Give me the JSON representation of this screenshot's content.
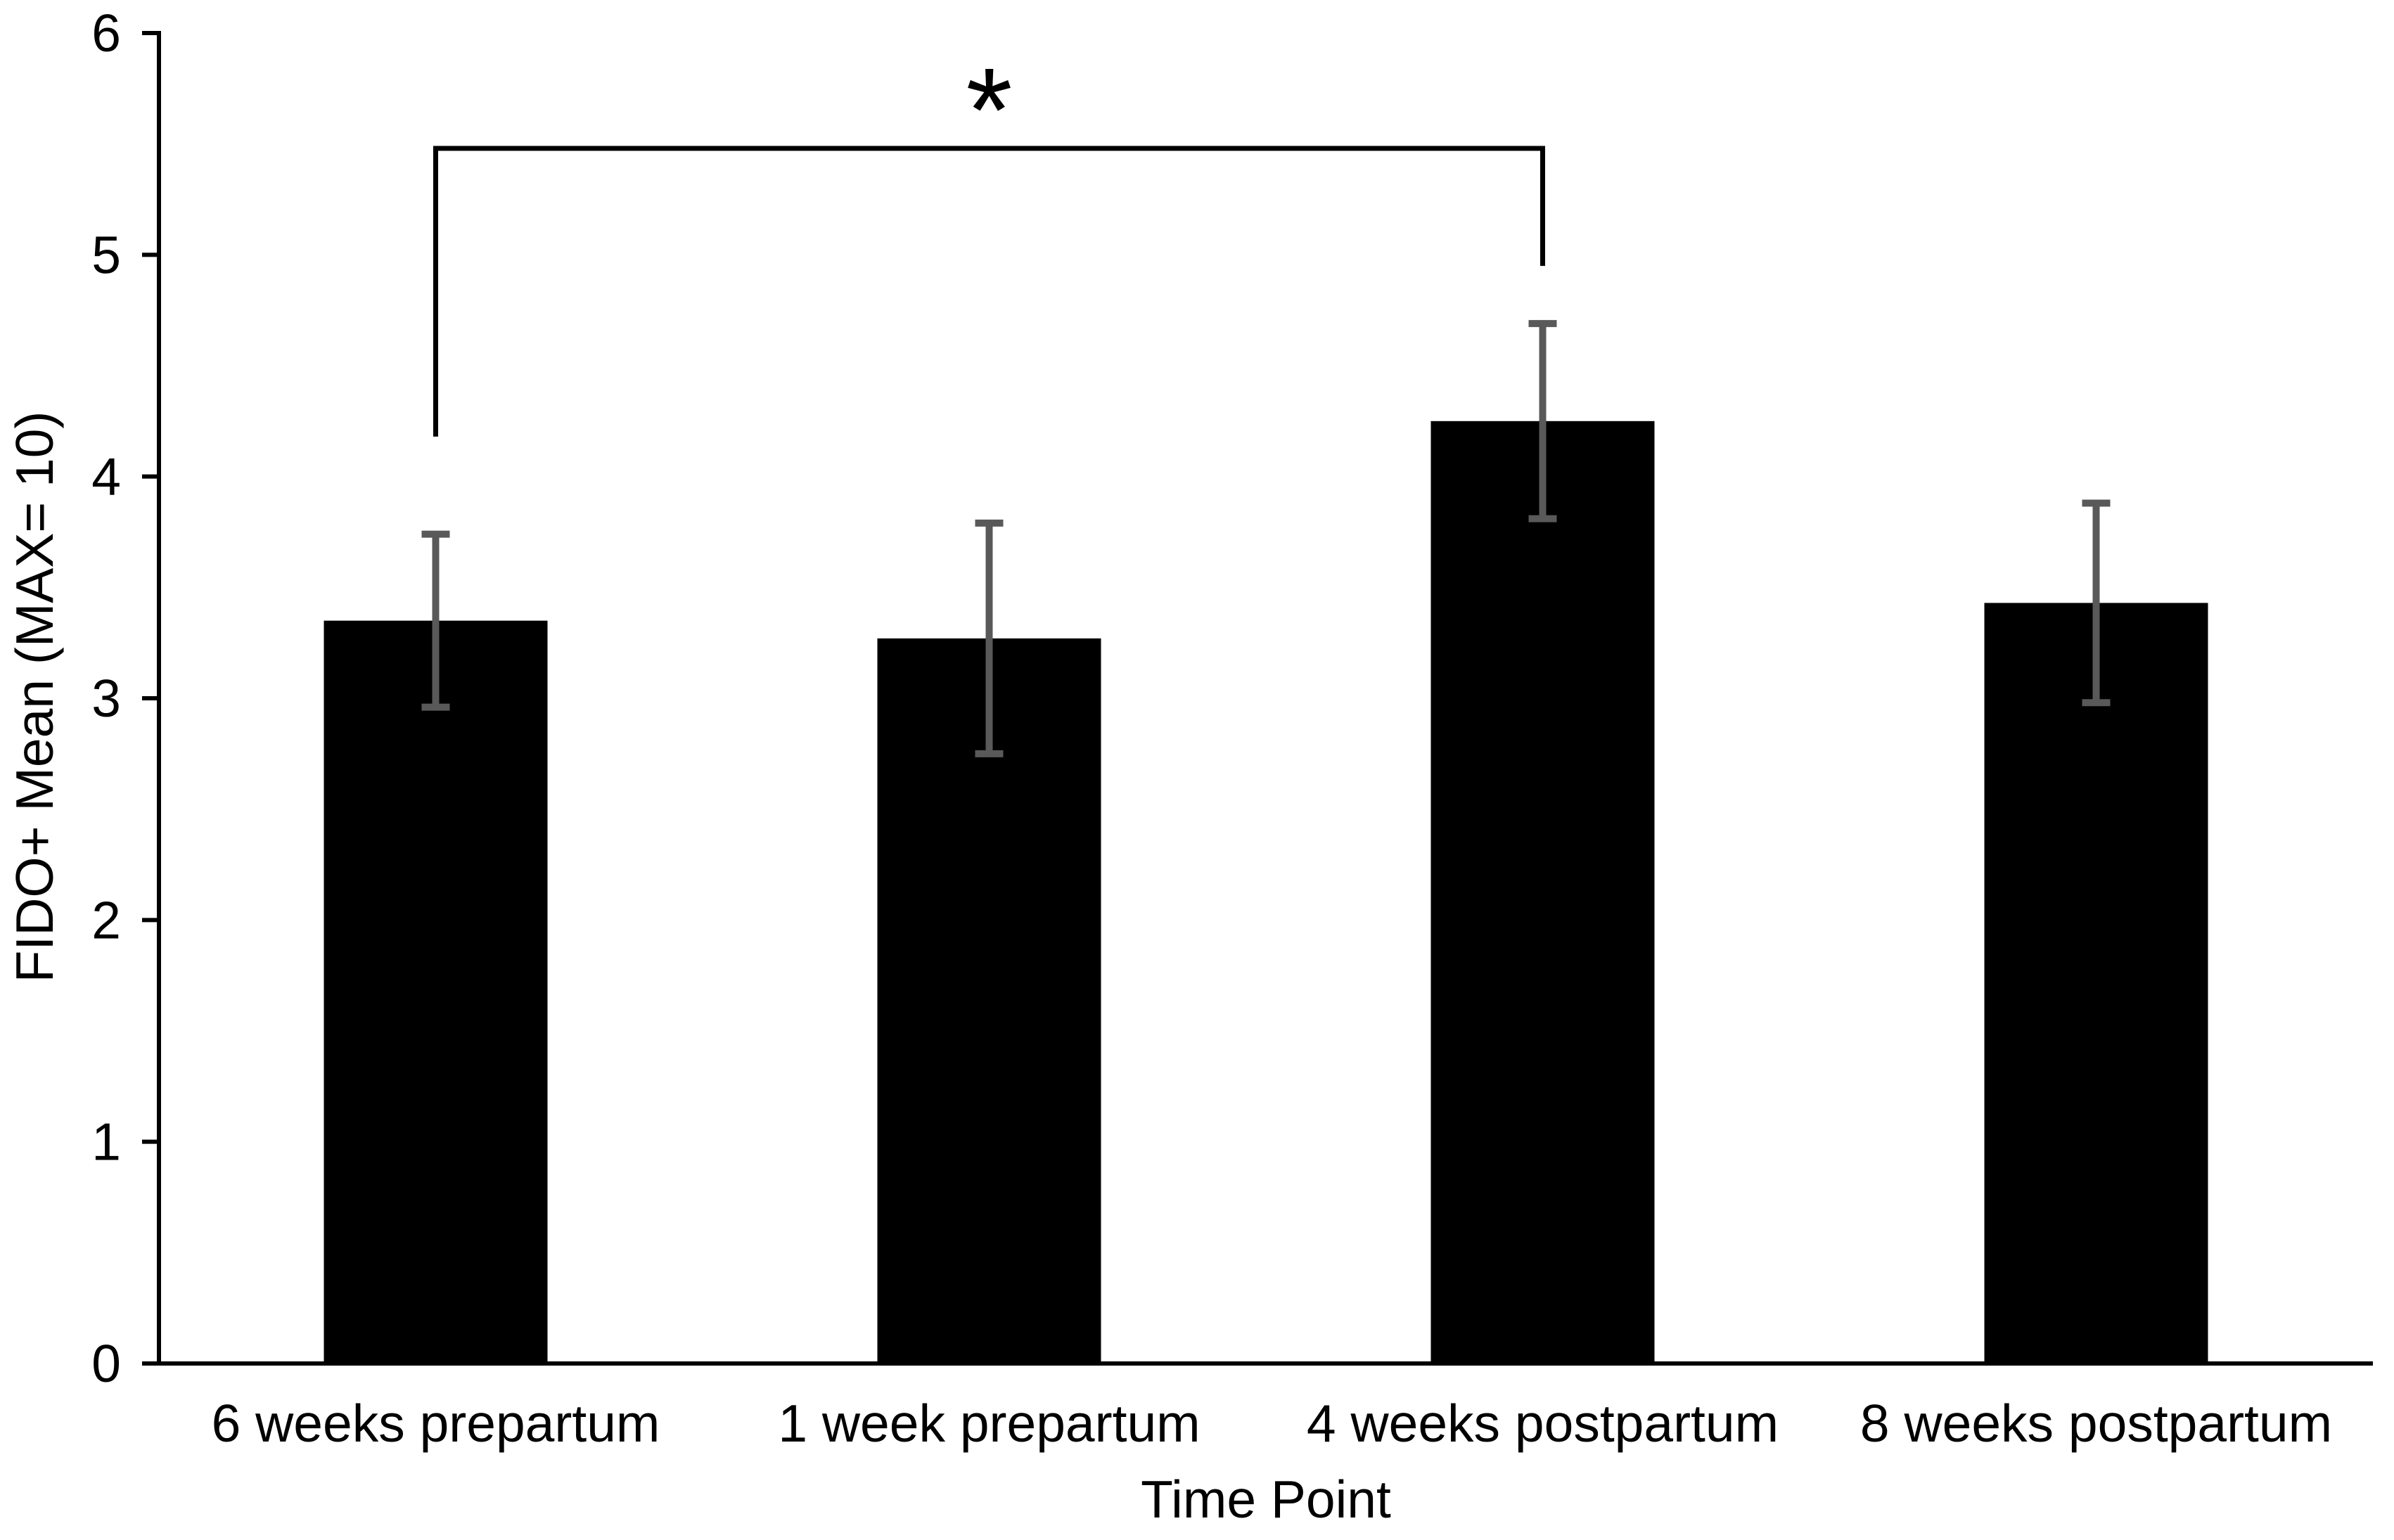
{
  "chart_data": {
    "type": "bar",
    "title": "",
    "xlabel": "Time Point",
    "ylabel": "FIDO+ Mean (MAX= 10)",
    "categories": [
      "6 weeks prepartum",
      "1 week prepartum",
      "4 weeks postpartum",
      "8 weeks postpartum"
    ],
    "values": [
      3.35,
      3.27,
      4.25,
      3.43
    ],
    "error_bars": [
      0.39,
      0.52,
      0.44,
      0.45
    ],
    "ylim": [
      0,
      6
    ],
    "y_ticks": [
      0,
      1,
      2,
      3,
      4,
      5,
      6
    ],
    "grid": "off",
    "legend": "none",
    "bar_color": "#000000",
    "error_bar_color": "#595959",
    "axis_color": "#000000",
    "significance": {
      "label": "*",
      "from_category": "6 weeks prepartum",
      "to_category": "4 weeks postpartum",
      "from_index": 0,
      "to_index": 2,
      "bracket_top_y_value": 5.48,
      "left_leg_bottom_y_value": 4.18,
      "right_leg_bottom_y_value": 4.95
    }
  }
}
